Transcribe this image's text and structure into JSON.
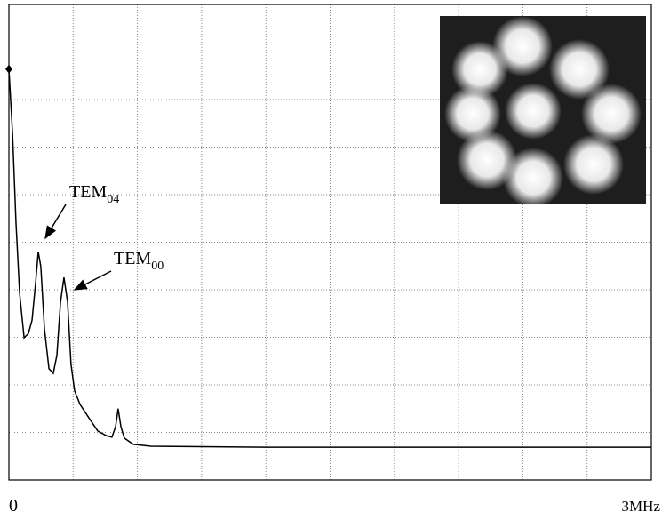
{
  "chart_data": {
    "type": "line",
    "x": [
      0,
      0.017,
      0.033,
      0.05,
      0.071,
      0.091,
      0.108,
      0.124,
      0.137,
      0.149,
      0.166,
      0.187,
      0.207,
      0.224,
      0.241,
      0.257,
      0.274,
      0.29,
      0.307,
      0.332,
      0.373,
      0.415,
      0.456,
      0.481,
      0.498,
      0.51,
      0.523,
      0.539,
      0.581,
      0.664,
      1.203,
      3
    ],
    "series": [
      {
        "color": "#000000",
        "values": [
          8.64,
          7.29,
          5.42,
          3.93,
          2.99,
          3.08,
          3.36,
          4.11,
          4.8,
          4.49,
          3.18,
          2.34,
          2.24,
          2.62,
          3.74,
          4.26,
          3.74,
          2.43,
          1.87,
          1.59,
          1.31,
          1.03,
          0.93,
          0.9,
          1.12,
          1.5,
          1.12,
          0.88,
          0.75,
          0.71,
          0.69,
          0.69
        ]
      }
    ],
    "xlim": [
      0,
      3
    ],
    "xticks": [
      0,
      {
        "value": 3,
        "label": "3MHz"
      }
    ],
    "ylim": [
      0,
      10
    ],
    "grid": true,
    "annotations": [
      {
        "text": "TEM",
        "subscript": "04"
      },
      {
        "text": "TEM",
        "subscript": "00"
      }
    ]
  }
}
